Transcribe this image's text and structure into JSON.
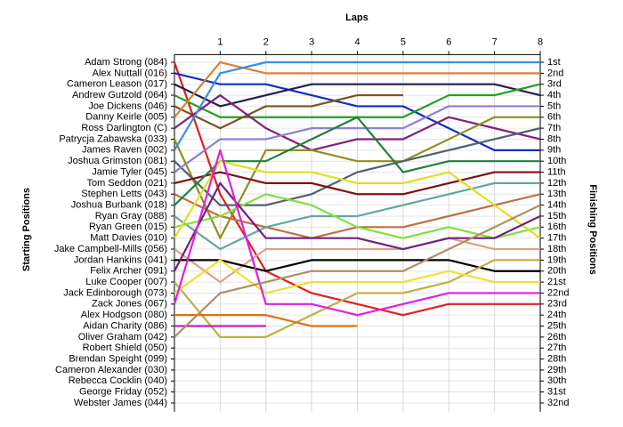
{
  "chart_data": {
    "type": "lap",
    "x_label": "Laps",
    "y_label": "Starting Positions",
    "y2_label": "Finishing Positions",
    "xlim": [
      0,
      8
    ],
    "xticks": [
      1,
      2,
      3,
      4,
      5,
      6,
      7,
      8
    ],
    "ylim": [
      1,
      32
    ],
    "grid": true,
    "finishing_positions": [
      "1st",
      "2nd",
      "3rd",
      "4th",
      "5th",
      "6th",
      "7th",
      "8th",
      "9th",
      "10th",
      "11th",
      "12th",
      "13th",
      "14th",
      "15th",
      "16th",
      "17th",
      "18th",
      "19th",
      "20th",
      "21st",
      "22nd",
      "23rd",
      "24th",
      "25th",
      "26th",
      "27th",
      "28th",
      "29th",
      "30th",
      "31st",
      "32nd"
    ],
    "series": [
      {
        "name": "Adam Strong (084)",
        "color": "#e02020",
        "values": [
          1,
          13,
          20,
          22,
          23,
          24,
          23,
          23,
          23
        ]
      },
      {
        "name": "Alex Nuttall (016)",
        "color": "#1030c0",
        "values": [
          2,
          3,
          3,
          4,
          5,
          5,
          7,
          9,
          9
        ]
      },
      {
        "name": "Cameron Leason (017)",
        "color": "#202050",
        "values": [
          3,
          5,
          4,
          3,
          3,
          3,
          3,
          3,
          4
        ]
      },
      {
        "name": "Andrew Gutzold (064)",
        "color": "#20a020",
        "values": [
          4,
          6,
          6,
          6,
          6,
          6,
          4,
          4,
          3
        ]
      },
      {
        "name": "Joe Dickens (046)",
        "color": "#805020",
        "values": [
          5,
          7,
          5,
          5,
          4,
          4,
          null,
          null,
          null
        ]
      },
      {
        "name": "Danny Keirle (005)",
        "color": "#e08030",
        "values": [
          6,
          1,
          2,
          2,
          2,
          2,
          2,
          2,
          2
        ]
      },
      {
        "name": "Ross Darlington (C)",
        "color": "#802080",
        "values": [
          7,
          4,
          7,
          9,
          8,
          8,
          6,
          7,
          8
        ]
      },
      {
        "name": "Patrycja Zabawska (033)",
        "color": "#909020",
        "values": [
          8,
          17,
          9,
          9,
          10,
          10,
          8,
          6,
          6
        ]
      },
      {
        "name": "James Raven (002)",
        "color": "#3a90e0",
        "values": [
          9,
          2,
          1,
          1,
          1,
          1,
          1,
          1,
          1
        ]
      },
      {
        "name": "Joshua Grimston (081)",
        "color": "#506070",
        "values": [
          10,
          14,
          14,
          13,
          11,
          10,
          9,
          8,
          7
        ]
      },
      {
        "name": "Jamie Tyler (045)",
        "color": "#9080d0",
        "values": [
          11,
          8,
          8,
          7,
          7,
          7,
          5,
          5,
          5
        ]
      },
      {
        "name": "Tom Seddon (021)",
        "color": "#801010",
        "values": [
          12,
          11,
          12,
          12,
          13,
          13,
          12,
          11,
          11
        ]
      },
      {
        "name": "Stephen Letts (043)",
        "color": "#c07040",
        "values": [
          13,
          15,
          16,
          17,
          16,
          16,
          15,
          14,
          13
        ]
      },
      {
        "name": "Joshua Burbank (018)",
        "color": "#208040",
        "values": [
          14,
          10,
          10,
          8,
          6,
          11,
          10,
          10,
          10
        ]
      },
      {
        "name": "Ryan Gray (088)",
        "color": "#60a8a0",
        "values": [
          15,
          18,
          16,
          15,
          15,
          14,
          13,
          12,
          12
        ]
      },
      {
        "name": "Ryan Green (015)",
        "color": "#80e040",
        "values": [
          16,
          15,
          13,
          14,
          16,
          17,
          16,
          17,
          16
        ]
      },
      {
        "name": "Matt Davies (010)",
        "color": "#e0e020",
        "values": [
          17,
          10,
          11,
          11,
          12,
          12,
          11,
          14,
          17
        ]
      },
      {
        "name": "Jake Campbell-Mills (056)",
        "color": "#e0a080",
        "values": [
          18,
          21,
          18,
          18,
          18,
          18,
          17,
          18,
          18
        ]
      },
      {
        "name": "Jordan Hankins (041)",
        "color": "#000000",
        "values": [
          19,
          19,
          20,
          19,
          19,
          19,
          19,
          20,
          20
        ]
      },
      {
        "name": "Felix Archer (091)",
        "color": "#702080",
        "values": [
          20,
          12,
          17,
          17,
          17,
          18,
          17,
          17,
          15
        ]
      },
      {
        "name": "Luke Cooper (007)",
        "color": "#c0b040",
        "values": [
          21,
          26,
          26,
          24,
          22,
          22,
          21,
          19,
          19
        ]
      },
      {
        "name": "Jack Edinborough (073)",
        "color": "#f0e030",
        "values": [
          22,
          19,
          22,
          21,
          21,
          21,
          20,
          21,
          21
        ]
      },
      {
        "name": "Zack Jones (067)",
        "color": "#e020e0",
        "values": [
          23,
          9,
          23,
          23,
          24,
          23,
          22,
          22,
          22
        ]
      },
      {
        "name": "Alex Hodgson (080)",
        "color": "#e07010",
        "values": [
          24,
          24,
          24,
          25,
          25,
          null,
          null,
          null,
          null
        ]
      },
      {
        "name": "Aidan Charity (086)",
        "color": "#c020c0",
        "values": [
          25,
          25,
          25,
          null,
          null,
          null,
          null,
          null,
          null
        ]
      },
      {
        "name": "Oliver Graham (042)",
        "color": "#b09060",
        "values": [
          26,
          22,
          21,
          20,
          20,
          20,
          18,
          16,
          14
        ]
      },
      {
        "name": "Robert Shield (050)",
        "color": "#888888",
        "values": [
          null,
          null,
          null,
          null,
          null,
          null,
          null,
          null,
          null
        ]
      },
      {
        "name": "Brendan Speight (099)",
        "color": "#888888",
        "values": [
          null,
          null,
          null,
          null,
          null,
          null,
          null,
          null,
          null
        ]
      },
      {
        "name": "Cameron Alexander (030)",
        "color": "#888888",
        "values": [
          null,
          null,
          null,
          null,
          null,
          null,
          null,
          null,
          null
        ]
      },
      {
        "name": "Rebecca Cocklin (040)",
        "color": "#888888",
        "values": [
          null,
          null,
          null,
          null,
          null,
          null,
          null,
          null,
          null
        ]
      },
      {
        "name": "George Friday (052)",
        "color": "#888888",
        "values": [
          null,
          null,
          null,
          null,
          null,
          null,
          null,
          null,
          null
        ]
      },
      {
        "name": "Webster James (044)",
        "color": "#888888",
        "values": [
          null,
          null,
          null,
          null,
          null,
          null,
          null,
          null,
          null
        ]
      }
    ]
  }
}
